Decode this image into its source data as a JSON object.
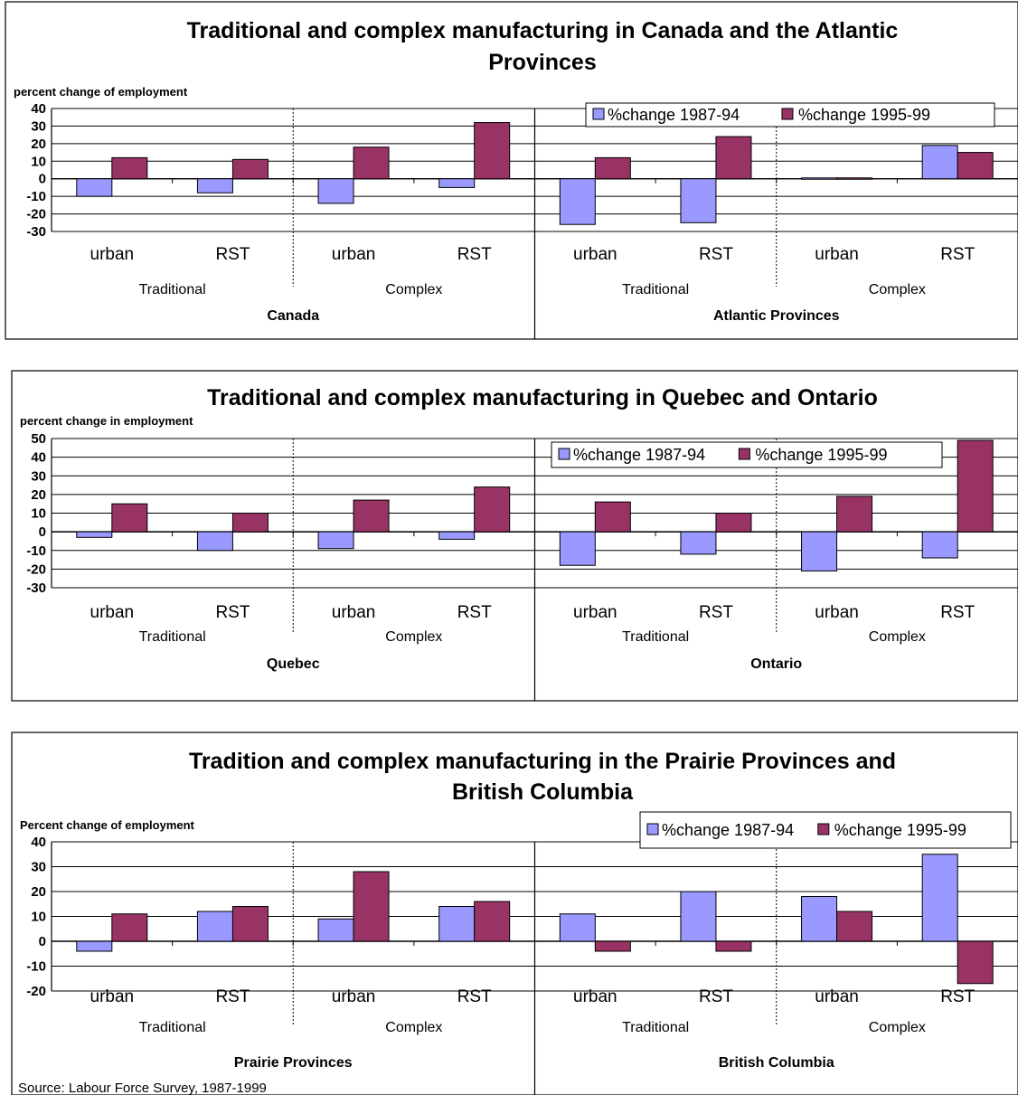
{
  "legend": {
    "s1": "%change 1987-94",
    "s2": "%change 1995-99"
  },
  "colors": {
    "s1": "#9999ff",
    "s2": "#993366"
  },
  "source": "Source: Labour Force Survey, 1987-1999",
  "chart_data": [
    {
      "type": "bar",
      "title": [
        "Traditional and complex manufacturing in Canada and the Atlantic",
        "Provinces"
      ],
      "ylabel": "percent change of employment",
      "ylim": [
        -30,
        40
      ],
      "yticks": [
        "40",
        "30",
        "20",
        "10",
        "0",
        "-10",
        "-20",
        "-30"
      ],
      "categories": [
        "urban",
        "RST",
        "urban",
        "RST",
        "urban",
        "RST",
        "urban",
        "RST"
      ],
      "groups": [
        "Traditional",
        "Complex",
        "Traditional",
        "Complex"
      ],
      "regions": [
        "Canada",
        "Atlantic Provinces"
      ],
      "series": [
        {
          "name": "%change 1987-94",
          "values": [
            -10,
            -8,
            -14,
            -5,
            -26,
            -25,
            0.5,
            19
          ]
        },
        {
          "name": "%change 1995-99",
          "values": [
            12,
            11,
            18,
            32,
            12,
            24,
            0.5,
            15
          ]
        }
      ]
    },
    {
      "type": "bar",
      "title": [
        "Traditional and complex manufacturing in Quebec and Ontario"
      ],
      "ylabel": "percent change in employment",
      "ylim": [
        -30,
        50
      ],
      "yticks": [
        "50",
        "40",
        "30",
        "20",
        "10",
        "0",
        "-10",
        "-20",
        "-30"
      ],
      "categories": [
        "urban",
        "RST",
        "urban",
        "RST",
        "urban",
        "RST",
        "urban",
        "RST"
      ],
      "groups": [
        "Traditional",
        "Complex",
        "Traditional",
        "Complex"
      ],
      "regions": [
        "Quebec",
        "Ontario"
      ],
      "series": [
        {
          "name": "%change 1987-94",
          "values": [
            -3,
            -10,
            -9,
            -4,
            -18,
            -12,
            -21,
            -14
          ]
        },
        {
          "name": "%change 1995-99",
          "values": [
            15,
            10,
            17,
            24,
            16,
            10,
            19,
            49
          ]
        }
      ]
    },
    {
      "type": "bar",
      "title": [
        "Tradition and complex manufacturing in the Prairie Provinces and",
        "British Columbia"
      ],
      "ylabel": "Percent change of employment",
      "ylim": [
        -20,
        40
      ],
      "yticks": [
        "40",
        "30",
        "20",
        "10",
        "0",
        "-10",
        "-20"
      ],
      "categories": [
        "urban",
        "RST",
        "urban",
        "RST",
        "urban",
        "RST",
        "urban",
        "RST"
      ],
      "groups": [
        "Traditional",
        "Complex",
        "Traditional",
        "Complex"
      ],
      "regions": [
        "Prairie Provinces",
        "British Columbia"
      ],
      "series": [
        {
          "name": "%change 1987-94",
          "values": [
            -4,
            12,
            9,
            14,
            11,
            20,
            18,
            35
          ]
        },
        {
          "name": "%change 1995-99",
          "values": [
            11,
            14,
            28,
            16,
            -4,
            -4,
            12,
            -17
          ]
        }
      ]
    }
  ]
}
